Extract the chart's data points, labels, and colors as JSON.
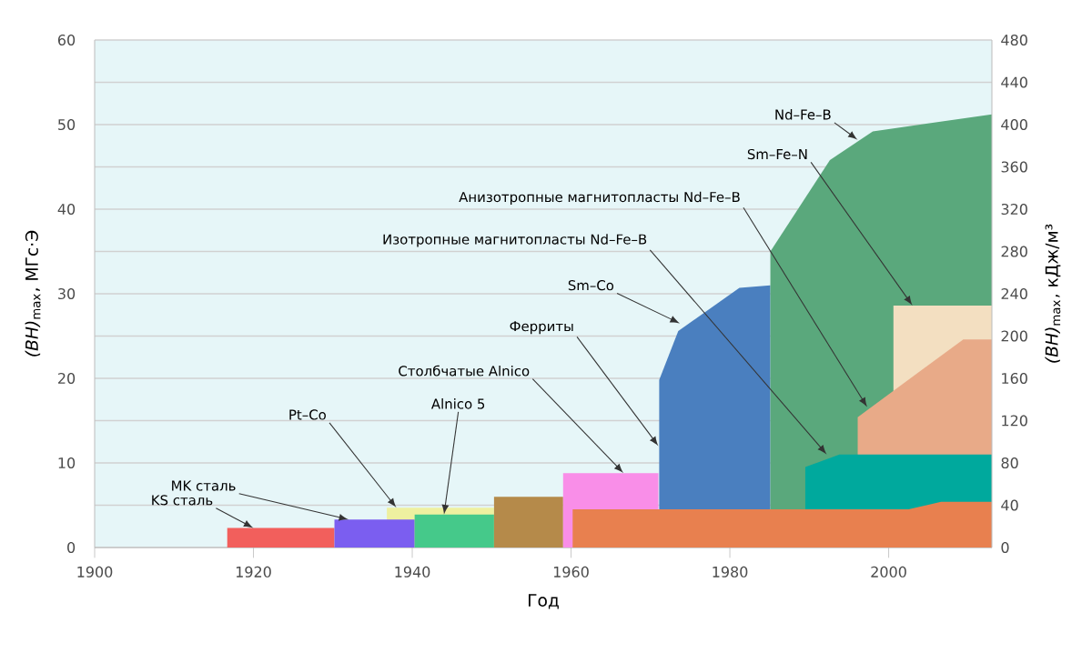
{
  "chart_data": {
    "type": "area",
    "xlabel": "Год",
    "ylabel": "*(BH)*$_{max}$, МГс·Э",
    "y2label": "*(BH)*$_{max}$, кДж/м³",
    "xlim": [
      1900,
      2013
    ],
    "xticks": [
      1900,
      1920,
      1940,
      1960,
      1980,
      2000
    ],
    "ylim": [
      0,
      60
    ],
    "yticks": [
      0,
      {
        "value": 5,
        "label": null
      },
      10,
      {
        "value": 15,
        "label": null
      },
      20,
      {
        "value": 25,
        "label": null
      },
      30,
      {
        "value": 35,
        "label": null
      },
      40,
      {
        "value": 45,
        "label": null
      },
      50,
      {
        "value": 55,
        "label": null
      },
      60
    ],
    "y2lim": [
      0,
      480
    ],
    "y2ticks": [
      0,
      40,
      80,
      120,
      160,
      200,
      240,
      280,
      320,
      360,
      400,
      440,
      480
    ],
    "grid": "y",
    "series": [
      {
        "color": "#f25f5c",
        "x": [
          1916.7,
          1930.2
        ],
        "values": [
          2.3,
          2.3
        ]
      },
      {
        "color": "#eef0a0",
        "x": [
          1936.8,
          1950.3
        ],
        "values": [
          4.7,
          4.7
        ]
      },
      {
        "color": "#7b5ef0",
        "x": [
          1930.2,
          1940.3
        ],
        "values": [
          3.3,
          3.3
        ]
      },
      {
        "color": "#45c98a",
        "x": [
          1940.3,
          1950.3
        ],
        "values": [
          3.9,
          3.9
        ]
      },
      {
        "color": "#b58a4a",
        "x": [
          1950.3,
          1959.0
        ],
        "values": [
          6.0,
          6.0
        ]
      },
      {
        "color": "#f98ee8",
        "x": [
          1959.0,
          1971.0
        ],
        "values": [
          8.8,
          8.8
        ]
      },
      {
        "color": "#4a7fbf",
        "x": [
          1971.1,
          1973.5,
          1981.2,
          1985.1
        ],
        "values": [
          19.8,
          25.6,
          30.7,
          31.0
        ]
      },
      {
        "color": "#5aa87c",
        "x": [
          1985.1,
          1992.6,
          1998.0,
          2013
        ],
        "values": [
          35.0,
          45.8,
          49.2,
          51.2
        ]
      },
      {
        "color": "#f3dfc1",
        "x": [
          2000.6,
          2013
        ],
        "values": [
          28.6,
          28.6
        ]
      },
      {
        "color": "#e8aa88",
        "x": [
          1996.1,
          2009.4,
          2013
        ],
        "values": [
          15.4,
          24.6,
          24.6
        ]
      },
      {
        "color": "#00a99d",
        "x": [
          1989.5,
          1993.8,
          2013
        ],
        "values": [
          9.5,
          11.0,
          11.0
        ]
      },
      {
        "color": "#e8804f",
        "x": [
          1960.2,
          2002.5,
          2006.6,
          2013
        ],
        "values": [
          4.5,
          4.5,
          5.4,
          5.4
        ]
      }
    ],
    "annotations": [
      {
        "text": "KS сталь",
        "x": 1920,
        "y": 2.3
      },
      {
        "text": "MK сталь",
        "x": 1932,
        "y": 3.3
      },
      {
        "text": "Pt–Co",
        "x": 1938,
        "y": 4.7
      },
      {
        "text": "Alnico 5",
        "x": 1944,
        "y": 3.9
      },
      {
        "text": "Столбчатые Alnico",
        "x": 1966.6,
        "y": 8.8
      },
      {
        "text": "Ферриты",
        "x": 1971,
        "y": 12
      },
      {
        "text": "Sm–Co",
        "x": 1973.7,
        "y": 26.5
      },
      {
        "text": "Изотропные магнитопласты Nd–Fe–B",
        "x": 1992.2,
        "y": 11.0
      },
      {
        "text": "Анизотропные магнитопласты Nd–Fe–B",
        "x": 1997.3,
        "y": 16.6
      },
      {
        "text": "Sm–Fe–N",
        "x": 2003,
        "y": 28.6
      },
      {
        "text": "Nd–Fe–B",
        "x": 1996.1,
        "y": 48.2
      }
    ]
  }
}
